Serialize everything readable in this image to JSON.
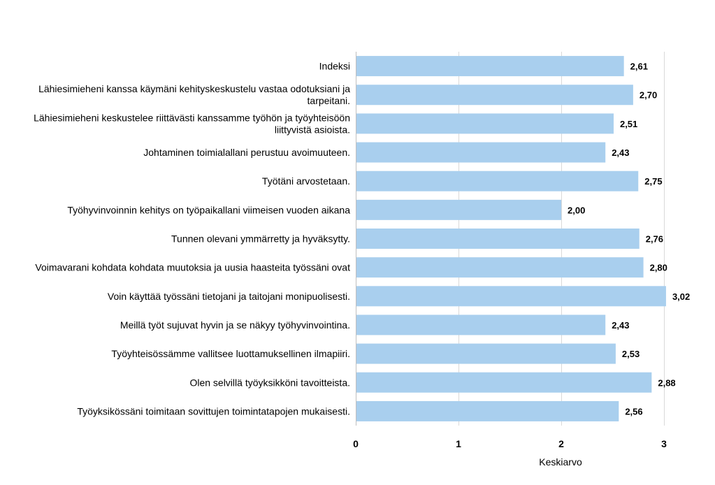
{
  "chart_data": {
    "type": "bar",
    "orientation": "horizontal",
    "categories": [
      "Indeksi",
      "Lähiesimieheni kanssa käymäni kehityskeskustelu vastaa odotuksiani ja tarpeitani.",
      "Lähiesimieheni keskustelee riittävästi kanssamme työhön ja työyhteisöön liittyvistä asioista.",
      "Johtaminen toimialallani perustuu avoimuuteen.",
      "Työtäni arvostetaan.",
      "Työhyvinvoinnin kehitys on työpaikallani viimeisen vuoden aikana",
      "Tunnen olevani ymmärretty ja hyväksytty.",
      "Voimavarani kohdata kohdata muutoksia ja uusia haasteita työssäni ovat",
      "Voin käyttää työssäni tietojani ja taitojani monipuolisesti.",
      "Meillä työt sujuvat hyvin ja se näkyy työhyvinvointina.",
      "Työyhteisössämme vallitsee luottamuksellinen ilmapiiri.",
      "Olen selvillä työyksikköni tavoitteista.",
      "Työyksikössäni toimitaan sovittujen toimintatapojen mukaisesti."
    ],
    "category_lines": [
      [
        "Indeksi"
      ],
      [
        "Lähiesimieheni kanssa käymäni kehityskeskustelu vastaa odotuksiani ja",
        "tarpeitani."
      ],
      [
        "Lähiesimieheni keskustelee riittävästi kanssamme työhön ja työyhteisöön",
        "liittyvistä asioista."
      ],
      [
        "Johtaminen toimialallani perustuu avoimuuteen."
      ],
      [
        "Työtäni arvostetaan."
      ],
      [
        "Työhyvinvoinnin kehitys on työpaikallani viimeisen vuoden aikana"
      ],
      [
        "Tunnen olevani ymmärretty ja hyväksytty."
      ],
      [
        "Voimavarani kohdata kohdata muutoksia ja uusia haasteita työssäni ovat"
      ],
      [
        "Voin käyttää työssäni tietojani ja taitojani monipuolisesti."
      ],
      [
        "Meillä työt sujuvat hyvin ja se näkyy työhyvinvointina."
      ],
      [
        "Työyhteisössämme vallitsee luottamuksellinen ilmapiiri."
      ],
      [
        "Olen selvillä työyksikköni tavoitteista."
      ],
      [
        "Työyksikössäni toimitaan sovittujen toimintatapojen mukaisesti."
      ]
    ],
    "values": [
      2.61,
      2.7,
      2.51,
      2.43,
      2.75,
      2.0,
      2.76,
      2.8,
      3.02,
      2.43,
      2.53,
      2.88,
      2.56
    ],
    "value_labels": [
      "2,61",
      "2,70",
      "2,51",
      "2,43",
      "2,75",
      "2,00",
      "2,76",
      "2,80",
      "3,02",
      "2,43",
      "2,53",
      "2,88",
      "2,56"
    ],
    "title": "",
    "xlabel": "Keskiarvo",
    "ylabel": "",
    "xlim": [
      0,
      3
    ],
    "xticks": [
      0,
      1,
      2,
      3
    ],
    "xtick_labels": [
      "0",
      "1",
      "2",
      "3"
    ],
    "grid": "vertical",
    "legend": "none",
    "bar_color": "#a9cfee",
    "grid_color": "#d9d9d9"
  }
}
